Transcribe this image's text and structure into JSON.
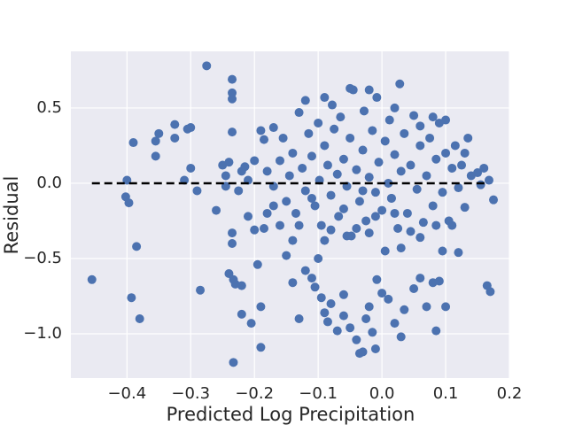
{
  "chart_data": {
    "type": "scatter",
    "x_label": "Predicted Log Precipitation",
    "y_label": "Residual",
    "color": "#4c72b0",
    "grid": true,
    "xlim": [
      -0.488,
      0.2
    ],
    "ylim": [
      -1.294,
      0.876
    ],
    "xticks": [
      {
        "value": -0.4,
        "label": "−0.4"
      },
      {
        "value": -0.3,
        "label": "−0.3"
      },
      {
        "value": -0.2,
        "label": "−0.2"
      },
      {
        "value": -0.1,
        "label": "−0.1"
      },
      {
        "value": 0,
        "label": "0.0"
      },
      0.1,
      0.2
    ],
    "yticks": [
      {
        "value": -1,
        "label": "−1.0"
      },
      {
        "value": -0.5,
        "label": "−0.5"
      },
      {
        "value": 0,
        "label": "0.0"
      },
      0.5
    ],
    "reference_line": {
      "y": 0,
      "x": [
        -0.455,
        0.165
      ]
    },
    "x": [
      -0.455,
      -0.4,
      -0.402,
      -0.397,
      -0.393,
      -0.39,
      -0.385,
      -0.38,
      -0.355,
      -0.355,
      -0.35,
      -0.325,
      -0.325,
      -0.31,
      -0.305,
      -0.3,
      -0.3,
      -0.29,
      -0.285,
      -0.275,
      -0.26,
      -0.25,
      -0.245,
      -0.24,
      -0.235,
      -0.235,
      -0.235,
      -0.235,
      -0.235,
      -0.235,
      -0.233,
      -0.233,
      -0.23,
      -0.225,
      -0.22,
      -0.22,
      -0.215,
      -0.21,
      -0.205,
      -0.2,
      -0.195,
      -0.19,
      -0.19,
      -0.185,
      -0.185,
      -0.18,
      -0.17,
      -0.16,
      -0.155,
      -0.15,
      -0.145,
      -0.14,
      -0.135,
      -0.13,
      -0.125,
      -0.12,
      -0.115,
      -0.11,
      -0.105,
      -0.1,
      -0.098,
      -0.095,
      -0.09,
      -0.085,
      -0.08,
      -0.078,
      -0.075,
      -0.07,
      -0.068,
      -0.065,
      -0.06,
      -0.055,
      -0.05,
      -0.048,
      -0.045,
      -0.04,
      -0.035,
      -0.03,
      -0.028,
      -0.025,
      -0.02,
      -0.015,
      -0.01,
      -0.008,
      -0.005,
      0.0,
      0.005,
      0.01,
      0.012,
      0.015,
      0.02,
      0.025,
      0.028,
      0.03,
      0.035,
      0.04,
      0.045,
      0.05,
      0.055,
      0.06,
      0.065,
      0.07,
      0.075,
      0.08,
      0.085,
      0.09,
      0.095,
      0.1,
      0.105,
      0.11,
      0.115,
      0.12,
      0.125,
      0.13,
      0.14,
      0.15,
      0.16,
      0.165,
      0.17,
      0.175,
      0.168,
      0.155,
      0.135,
      0.13,
      0.12,
      0.11,
      0.1,
      0.095,
      0.09,
      0.085,
      0.06,
      0.045,
      0.03,
      0.02,
      0.015,
      0.005,
      -0.01,
      -0.02,
      -0.03,
      -0.04,
      -0.055,
      -0.06,
      -0.08,
      -0.09,
      -0.1,
      -0.11,
      -0.13,
      -0.14,
      -0.16,
      -0.17,
      -0.18,
      -0.2,
      -0.21,
      -0.22,
      -0.24,
      -0.245,
      -0.19,
      -0.17,
      -0.12,
      -0.09,
      -0.05,
      -0.02,
      0.02,
      0.06,
      0.08,
      -0.12,
      -0.11,
      -0.105,
      -0.095,
      -0.09,
      -0.085,
      -0.08,
      -0.07,
      -0.06,
      -0.05,
      -0.04,
      -0.035,
      -0.03,
      -0.025,
      -0.02,
      -0.015,
      -0.01,
      -0.008,
      0.0,
      0.01,
      0.02,
      0.03,
      0.035,
      0.05,
      0.06,
      0.07,
      0.08,
      0.085,
      0.1,
      -0.06,
      -0.14,
      -0.15,
      -0.13
    ],
    "values": [
      -0.64,
      0.02,
      -0.09,
      -0.13,
      -0.76,
      0.27,
      -0.42,
      -0.9,
      0.18,
      0.28,
      0.33,
      0.3,
      0.39,
      0.02,
      0.36,
      0.37,
      0.1,
      -0.05,
      -0.71,
      0.78,
      -0.18,
      0.12,
      0.05,
      -0.6,
      0.69,
      0.6,
      0.56,
      0.34,
      -0.33,
      -0.4,
      -0.64,
      -1.19,
      -0.67,
      -0.05,
      -0.68,
      -0.87,
      0.11,
      -0.22,
      -0.93,
      -0.31,
      -0.54,
      -0.82,
      -1.09,
      0.29,
      -0.3,
      0.08,
      -0.02,
      0.15,
      0.3,
      -0.12,
      0.05,
      0.2,
      -0.2,
      0.47,
      0.1,
      -0.05,
      0.33,
      0.18,
      -0.15,
      0.4,
      0.02,
      -0.28,
      0.25,
      0.12,
      -0.08,
      0.52,
      0.36,
      0.06,
      -0.22,
      0.44,
      0.16,
      -0.02,
      0.3,
      -0.35,
      0.62,
      0.09,
      -0.12,
      0.22,
      0.48,
      -0.25,
      0.04,
      0.35,
      -0.06,
      0.57,
      0.14,
      -0.18,
      0.28,
      0.0,
      0.42,
      -0.1,
      0.19,
      -0.3,
      0.66,
      0.08,
      0.33,
      -0.2,
      0.12,
      0.45,
      -0.04,
      0.25,
      -0.26,
      0.05,
      0.3,
      -0.15,
      0.16,
      0.4,
      -0.06,
      0.2,
      -0.25,
      0.1,
      0.25,
      -0.03,
      0.12,
      -0.16,
      0.05,
      0.07,
      0.1,
      -0.68,
      -0.72,
      -0.11,
      0.02,
      -0.01,
      0.3,
      0.2,
      -0.46,
      -0.28,
      0.42,
      -0.45,
      -0.65,
      -0.28,
      -0.36,
      -0.32,
      -0.43,
      -0.2,
      -0.1,
      -0.45,
      -0.22,
      -0.33,
      -0.05,
      -0.3,
      -0.35,
      -0.17,
      -0.31,
      -0.38,
      -0.5,
      -0.1,
      -0.28,
      -0.38,
      -0.28,
      -0.15,
      -0.2,
      0.15,
      0.02,
      0.08,
      0.14,
      -0.02,
      0.35,
      0.37,
      0.55,
      0.57,
      0.63,
      0.62,
      0.5,
      0.38,
      0.44,
      -0.58,
      -0.63,
      -0.69,
      -0.76,
      -0.86,
      -0.92,
      -0.8,
      -0.98,
      -0.88,
      -0.96,
      -1.04,
      -1.13,
      -1.12,
      -0.9,
      -0.82,
      -0.99,
      -1.1,
      -0.64,
      -0.73,
      -0.77,
      -0.93,
      -1.02,
      -0.84,
      -0.7,
      -0.63,
      -0.82,
      -0.66,
      -0.98,
      -0.82,
      -0.74,
      -0.66,
      -0.48,
      -0.9
    ]
  }
}
